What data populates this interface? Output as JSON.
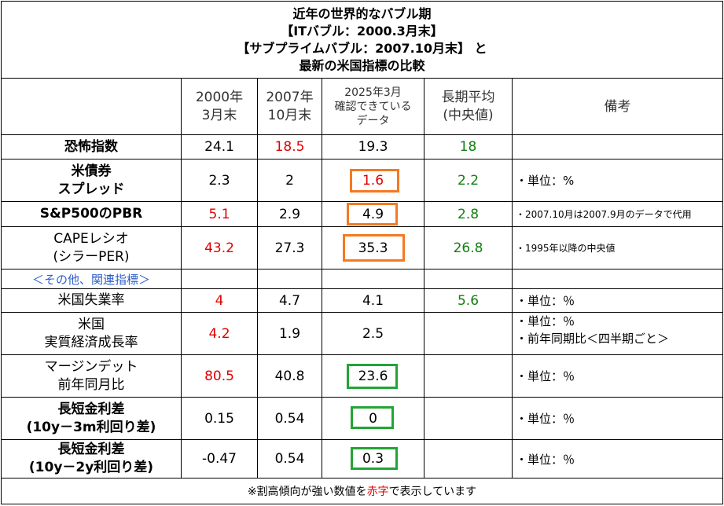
{
  "title": {
    "line1": "近年の世界的なバブル期",
    "line2": "【ITバブル：2000.3月末】",
    "line3": "【サブプライムバブル：2007.10月末】 と",
    "line4": "最新の米国指標の比較"
  },
  "headers": {
    "c2000_l1": "2000年",
    "c2000_l2": "3月末",
    "c2007_l1": "2007年",
    "c2007_l2": "10月末",
    "c2025_l1": "2025年3月",
    "c2025_l2": "確認できている",
    "c2025_l3": "データ",
    "avg_l1": "長期平均",
    "avg_l2": "(中央値)",
    "notes": "備考"
  },
  "rows": {
    "fear": {
      "label": "恐怖指数",
      "v2000": "24.1",
      "v2007": "18.5",
      "v2025": "19.3",
      "avg": "18",
      "note": ""
    },
    "spread": {
      "label_l1": "米債券",
      "label_l2": "スプレッド",
      "v2000": "2.3",
      "v2007": "2",
      "v2025": "1.6",
      "avg": "2.2",
      "note": "・単位：%"
    },
    "pbr": {
      "label": "S&P500のPBR",
      "v2000": "5.1",
      "v2007": "2.9",
      "v2025": "4.9",
      "avg": "2.8",
      "note": "・2007.10月は2007.9月のデータで代用"
    },
    "cape": {
      "label_l1": "CAPEレシオ",
      "label_l2": "(シラーPER)",
      "v2000": "43.2",
      "v2007": "27.3",
      "v2025": "35.3",
      "avg": "26.8",
      "note": "・1995年以降の中央値"
    },
    "other": {
      "label": "＜その他、関連指標＞"
    },
    "unemp": {
      "label": "米国失業率",
      "v2000": "4",
      "v2007": "4.7",
      "v2025": "4.1",
      "avg": "5.6",
      "note": "・単位：％"
    },
    "gdp": {
      "label_l1": "米国",
      "label_l2": "実質経済成長率",
      "v2000": "4.2",
      "v2007": "1.9",
      "v2025": "2.5",
      "avg": "",
      "note_l1": "・単位：％",
      "note_l2": "・前年同期比＜四半期ごと＞"
    },
    "margin": {
      "label_l1": "マージンデット",
      "label_l2": "前年同月比",
      "v2000": "80.5",
      "v2007": "40.8",
      "v2025": "23.6",
      "avg": "",
      "note": "・単位：％"
    },
    "yc3m": {
      "label_l1": "長短金利差",
      "label_l2": "(10y－3m利回り差)",
      "v2000": "0.15",
      "v2007": "0.54",
      "v2025": "0",
      "avg": "",
      "note": "・単位：％"
    },
    "yc2y": {
      "label_l1": "長短金利差",
      "label_l2": "(10y－2y利回り差)",
      "v2000": "-0.47",
      "v2007": "0.54",
      "v2025": "0.3",
      "avg": "",
      "note": "・単位：％"
    }
  },
  "footer": {
    "pre": "※割高傾向が強い数値を",
    "red": "赤字",
    "post": "で表示しています"
  },
  "colors": {
    "red": "#e00000",
    "green": "#108010",
    "blue": "#2f5fc8",
    "orange_box": "#f47a20",
    "green_box": "#22a534"
  }
}
